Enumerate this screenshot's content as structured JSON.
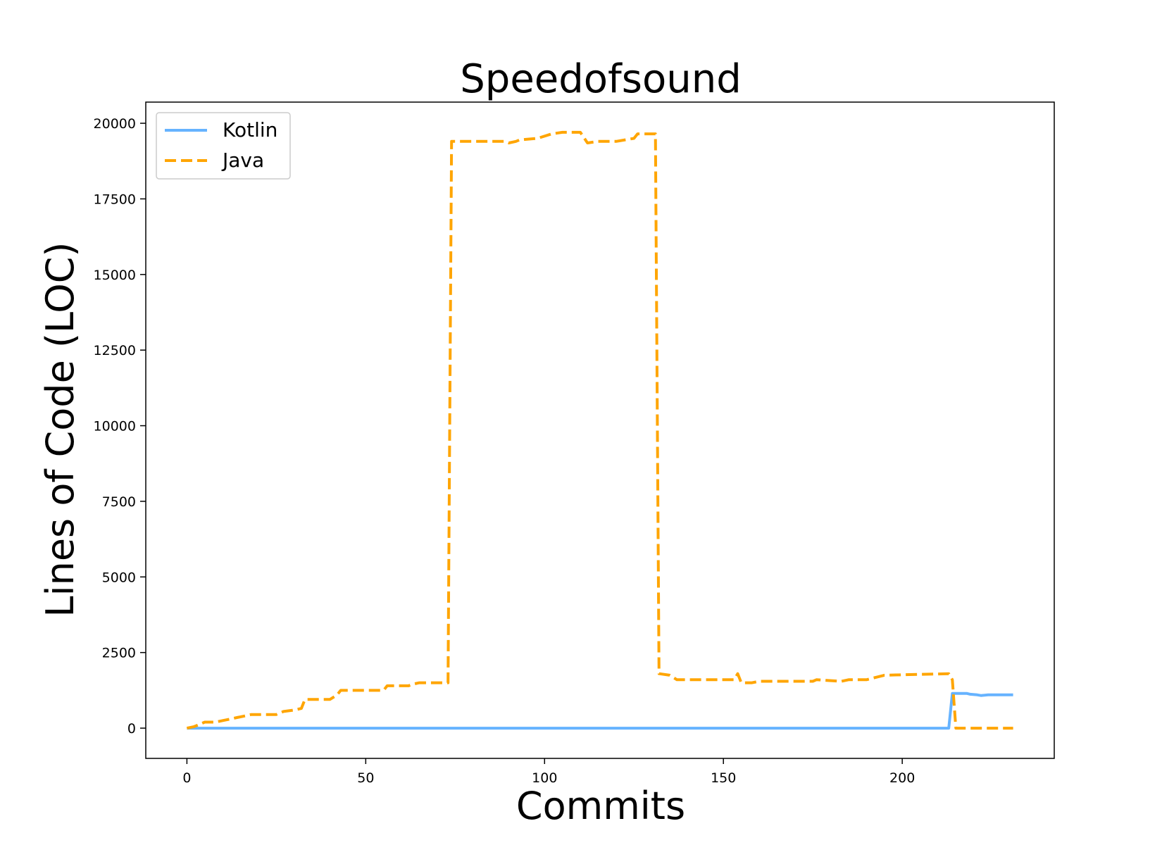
{
  "chart_data": {
    "type": "line",
    "title": "Speedofsound",
    "xlabel": "Commits",
    "ylabel": "Lines of Code (LOC)",
    "xlim": [
      -11.5,
      242.5
    ],
    "ylim": [
      -1000,
      20700
    ],
    "xticks": [
      0,
      50,
      100,
      150,
      200
    ],
    "yticks": [
      0,
      2500,
      5000,
      7500,
      10000,
      12500,
      15000,
      17500,
      20000
    ],
    "grid": false,
    "legend": {
      "position": "top-left"
    },
    "series": [
      {
        "name": "Kotlin",
        "color": "#66b3ff",
        "style": "solid",
        "points": [
          [
            0,
            0
          ],
          [
            213,
            0
          ],
          [
            214,
            1150
          ],
          [
            218,
            1150
          ],
          [
            219,
            1120
          ],
          [
            221,
            1100
          ],
          [
            222,
            1080
          ],
          [
            224,
            1100
          ],
          [
            231,
            1100
          ]
        ]
      },
      {
        "name": "Java",
        "color": "#ffa500",
        "style": "dashed",
        "points": [
          [
            0,
            0
          ],
          [
            2,
            50
          ],
          [
            3,
            100
          ],
          [
            5,
            200
          ],
          [
            8,
            200
          ],
          [
            10,
            250
          ],
          [
            12,
            300
          ],
          [
            14,
            350
          ],
          [
            16,
            400
          ],
          [
            18,
            450
          ],
          [
            25,
            450
          ],
          [
            27,
            550
          ],
          [
            30,
            600
          ],
          [
            32,
            650
          ],
          [
            33,
            950
          ],
          [
            40,
            950
          ],
          [
            42,
            1100
          ],
          [
            43,
            1250
          ],
          [
            50,
            1250
          ],
          [
            55,
            1250
          ],
          [
            56,
            1400
          ],
          [
            62,
            1400
          ],
          [
            63,
            1450
          ],
          [
            65,
            1500
          ],
          [
            73,
            1500
          ],
          [
            74,
            19400
          ],
          [
            85,
            19400
          ],
          [
            89,
            19400
          ],
          [
            90,
            19350
          ],
          [
            92,
            19400
          ],
          [
            93,
            19450
          ],
          [
            98,
            19500
          ],
          [
            102,
            19650
          ],
          [
            105,
            19700
          ],
          [
            110,
            19700
          ],
          [
            112,
            19350
          ],
          [
            115,
            19400
          ],
          [
            120,
            19400
          ],
          [
            125,
            19500
          ],
          [
            126,
            19650
          ],
          [
            131,
            19650
          ],
          [
            132,
            1800
          ],
          [
            135,
            1750
          ],
          [
            137,
            1600
          ],
          [
            147,
            1600
          ],
          [
            153,
            1600
          ],
          [
            154,
            1800
          ],
          [
            155,
            1500
          ],
          [
            158,
            1500
          ],
          [
            160,
            1550
          ],
          [
            175,
            1550
          ],
          [
            176,
            1600
          ],
          [
            183,
            1550
          ],
          [
            185,
            1600
          ],
          [
            190,
            1600
          ],
          [
            195,
            1750
          ],
          [
            213,
            1800
          ],
          [
            214,
            1600
          ],
          [
            215,
            0
          ],
          [
            231,
            0
          ]
        ]
      }
    ]
  }
}
